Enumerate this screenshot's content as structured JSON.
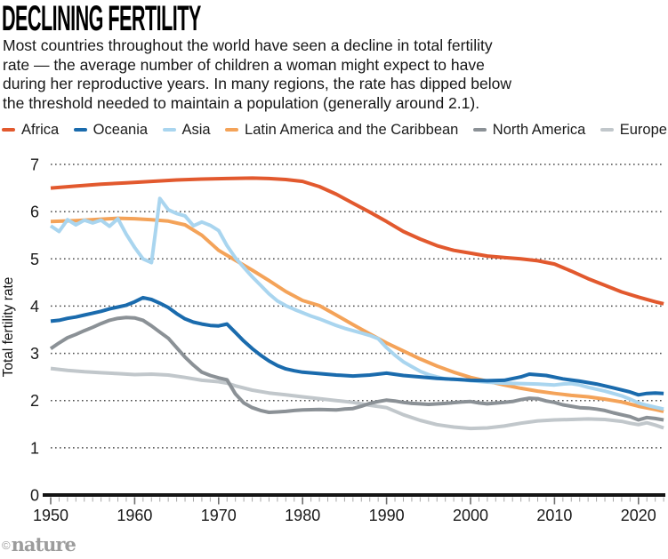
{
  "header": {
    "title": "DECLINING FERTILITY",
    "description_lines": [
      "Most countries throughout the world have seen a decline in total fertility",
      "rate — the average number of children a woman might expect to have",
      "during her reproductive years. In many regions, the rate has dipped below",
      "the threshold needed to maintain a population (generally around 2.1)."
    ]
  },
  "footer": {
    "credit_symbol": "©",
    "credit_name": "nature"
  },
  "chart_data": {
    "type": "line",
    "title": "DECLINING FERTILITY",
    "xlabel": "",
    "ylabel": "Total fertility rate",
    "xlim": [
      1950,
      2023
    ],
    "ylim": [
      0,
      7
    ],
    "x_ticks": [
      1950,
      1960,
      1970,
      1980,
      1990,
      2000,
      2010,
      2020
    ],
    "y_ticks": [
      0,
      1,
      2,
      3,
      4,
      5,
      6,
      7
    ],
    "grid": "horizontal dotted lines at y = 1..7",
    "legend_position": "top",
    "series": [
      {
        "name": "Africa",
        "color": "#e2592e",
        "points": [
          [
            1950,
            6.5
          ],
          [
            1953,
            6.54
          ],
          [
            1956,
            6.58
          ],
          [
            1959,
            6.61
          ],
          [
            1962,
            6.64
          ],
          [
            1965,
            6.67
          ],
          [
            1968,
            6.69
          ],
          [
            1971,
            6.7
          ],
          [
            1974,
            6.71
          ],
          [
            1976,
            6.7
          ],
          [
            1978,
            6.68
          ],
          [
            1980,
            6.64
          ],
          [
            1982,
            6.53
          ],
          [
            1984,
            6.37
          ],
          [
            1986,
            6.18
          ],
          [
            1988,
            5.99
          ],
          [
            1990,
            5.79
          ],
          [
            1992,
            5.58
          ],
          [
            1994,
            5.42
          ],
          [
            1996,
            5.28
          ],
          [
            1998,
            5.18
          ],
          [
            2000,
            5.12
          ],
          [
            2002,
            5.06
          ],
          [
            2004,
            5.03
          ],
          [
            2006,
            5.0
          ],
          [
            2008,
            4.96
          ],
          [
            2010,
            4.89
          ],
          [
            2012,
            4.74
          ],
          [
            2014,
            4.58
          ],
          [
            2016,
            4.44
          ],
          [
            2018,
            4.3
          ],
          [
            2020,
            4.19
          ],
          [
            2022,
            4.09
          ],
          [
            2023,
            4.05
          ]
        ]
      },
      {
        "name": "Oceania",
        "color": "#1a6bad",
        "points": [
          [
            1950,
            3.68
          ],
          [
            1951,
            3.7
          ],
          [
            1952,
            3.74
          ],
          [
            1953,
            3.77
          ],
          [
            1954,
            3.81
          ],
          [
            1955,
            3.85
          ],
          [
            1956,
            3.89
          ],
          [
            1957,
            3.94
          ],
          [
            1958,
            3.98
          ],
          [
            1959,
            4.02
          ],
          [
            1960,
            4.09
          ],
          [
            1961,
            4.18
          ],
          [
            1962,
            4.14
          ],
          [
            1963,
            4.06
          ],
          [
            1964,
            3.97
          ],
          [
            1965,
            3.84
          ],
          [
            1966,
            3.73
          ],
          [
            1967,
            3.66
          ],
          [
            1968,
            3.62
          ],
          [
            1969,
            3.59
          ],
          [
            1970,
            3.58
          ],
          [
            1971,
            3.62
          ],
          [
            1972,
            3.44
          ],
          [
            1973,
            3.26
          ],
          [
            1974,
            3.1
          ],
          [
            1975,
            2.96
          ],
          [
            1976,
            2.84
          ],
          [
            1977,
            2.74
          ],
          [
            1978,
            2.67
          ],
          [
            1979,
            2.63
          ],
          [
            1980,
            2.6
          ],
          [
            1982,
            2.57
          ],
          [
            1984,
            2.54
          ],
          [
            1986,
            2.52
          ],
          [
            1988,
            2.54
          ],
          [
            1990,
            2.58
          ],
          [
            1992,
            2.53
          ],
          [
            1994,
            2.5
          ],
          [
            1996,
            2.47
          ],
          [
            1998,
            2.45
          ],
          [
            2000,
            2.43
          ],
          [
            2002,
            2.42
          ],
          [
            2004,
            2.43
          ],
          [
            2006,
            2.5
          ],
          [
            2007,
            2.56
          ],
          [
            2009,
            2.53
          ],
          [
            2011,
            2.46
          ],
          [
            2013,
            2.41
          ],
          [
            2015,
            2.35
          ],
          [
            2017,
            2.27
          ],
          [
            2019,
            2.18
          ],
          [
            2020,
            2.12
          ],
          [
            2021,
            2.15
          ],
          [
            2022,
            2.16
          ],
          [
            2023,
            2.15
          ]
        ]
      },
      {
        "name": "Asia",
        "color": "#a9d5ef",
        "points": [
          [
            1950,
            5.7
          ],
          [
            1951,
            5.58
          ],
          [
            1952,
            5.83
          ],
          [
            1953,
            5.72
          ],
          [
            1954,
            5.82
          ],
          [
            1955,
            5.76
          ],
          [
            1956,
            5.82
          ],
          [
            1957,
            5.69
          ],
          [
            1958,
            5.85
          ],
          [
            1959,
            5.52
          ],
          [
            1960,
            5.24
          ],
          [
            1961,
            5.0
          ],
          [
            1962,
            4.92
          ],
          [
            1963,
            6.28
          ],
          [
            1964,
            6.04
          ],
          [
            1965,
            5.96
          ],
          [
            1966,
            5.91
          ],
          [
            1967,
            5.7
          ],
          [
            1968,
            5.78
          ],
          [
            1969,
            5.71
          ],
          [
            1970,
            5.6
          ],
          [
            1971,
            5.28
          ],
          [
            1972,
            5.02
          ],
          [
            1973,
            4.82
          ],
          [
            1974,
            4.62
          ],
          [
            1975,
            4.44
          ],
          [
            1976,
            4.26
          ],
          [
            1977,
            4.11
          ],
          [
            1978,
            4.01
          ],
          [
            1979,
            3.93
          ],
          [
            1980,
            3.86
          ],
          [
            1981,
            3.79
          ],
          [
            1982,
            3.73
          ],
          [
            1983,
            3.66
          ],
          [
            1984,
            3.59
          ],
          [
            1985,
            3.53
          ],
          [
            1986,
            3.48
          ],
          [
            1987,
            3.43
          ],
          [
            1988,
            3.38
          ],
          [
            1989,
            3.31
          ],
          [
            1990,
            3.12
          ],
          [
            1991,
            2.96
          ],
          [
            1992,
            2.82
          ],
          [
            1993,
            2.72
          ],
          [
            1994,
            2.62
          ],
          [
            1995,
            2.55
          ],
          [
            1996,
            2.5
          ],
          [
            1997,
            2.46
          ],
          [
            1998,
            2.45
          ],
          [
            1999,
            2.44
          ],
          [
            2000,
            2.42
          ],
          [
            2002,
            2.39
          ],
          [
            2004,
            2.37
          ],
          [
            2006,
            2.36
          ],
          [
            2008,
            2.35
          ],
          [
            2010,
            2.33
          ],
          [
            2011,
            2.35
          ],
          [
            2012,
            2.36
          ],
          [
            2013,
            2.33
          ],
          [
            2014,
            2.28
          ],
          [
            2016,
            2.2
          ],
          [
            2018,
            2.1
          ],
          [
            2019,
            2.03
          ],
          [
            2020,
            1.95
          ],
          [
            2021,
            1.9
          ],
          [
            2022,
            1.86
          ],
          [
            2023,
            1.82
          ]
        ]
      },
      {
        "name": "Latin America and the Caribbean",
        "color": "#f4a359",
        "points": [
          [
            1950,
            5.79
          ],
          [
            1953,
            5.81
          ],
          [
            1956,
            5.84
          ],
          [
            1958,
            5.86
          ],
          [
            1960,
            5.85
          ],
          [
            1962,
            5.83
          ],
          [
            1964,
            5.8
          ],
          [
            1966,
            5.72
          ],
          [
            1968,
            5.5
          ],
          [
            1970,
            5.18
          ],
          [
            1972,
            4.97
          ],
          [
            1974,
            4.76
          ],
          [
            1976,
            4.54
          ],
          [
            1978,
            4.31
          ],
          [
            1980,
            4.12
          ],
          [
            1982,
            4.01
          ],
          [
            1984,
            3.81
          ],
          [
            1986,
            3.61
          ],
          [
            1988,
            3.41
          ],
          [
            1990,
            3.22
          ],
          [
            1992,
            3.05
          ],
          [
            1994,
            2.88
          ],
          [
            1996,
            2.73
          ],
          [
            1998,
            2.6
          ],
          [
            2000,
            2.49
          ],
          [
            2002,
            2.41
          ],
          [
            2004,
            2.33
          ],
          [
            2006,
            2.26
          ],
          [
            2008,
            2.2
          ],
          [
            2010,
            2.15
          ],
          [
            2012,
            2.11
          ],
          [
            2014,
            2.08
          ],
          [
            2016,
            2.03
          ],
          [
            2018,
            1.97
          ],
          [
            2020,
            1.88
          ],
          [
            2022,
            1.81
          ],
          [
            2023,
            1.77
          ]
        ]
      },
      {
        "name": "North America",
        "color": "#8b9196",
        "points": [
          [
            1950,
            3.1
          ],
          [
            1951,
            3.22
          ],
          [
            1952,
            3.33
          ],
          [
            1953,
            3.4
          ],
          [
            1954,
            3.48
          ],
          [
            1955,
            3.55
          ],
          [
            1956,
            3.63
          ],
          [
            1957,
            3.7
          ],
          [
            1958,
            3.74
          ],
          [
            1959,
            3.76
          ],
          [
            1960,
            3.75
          ],
          [
            1961,
            3.7
          ],
          [
            1962,
            3.58
          ],
          [
            1963,
            3.45
          ],
          [
            1964,
            3.32
          ],
          [
            1965,
            3.12
          ],
          [
            1966,
            2.92
          ],
          [
            1967,
            2.75
          ],
          [
            1968,
            2.6
          ],
          [
            1969,
            2.53
          ],
          [
            1970,
            2.48
          ],
          [
            1971,
            2.44
          ],
          [
            1972,
            2.14
          ],
          [
            1973,
            1.95
          ],
          [
            1974,
            1.85
          ],
          [
            1975,
            1.79
          ],
          [
            1976,
            1.75
          ],
          [
            1977,
            1.76
          ],
          [
            1978,
            1.77
          ],
          [
            1979,
            1.79
          ],
          [
            1980,
            1.8
          ],
          [
            1982,
            1.81
          ],
          [
            1984,
            1.8
          ],
          [
            1985,
            1.82
          ],
          [
            1986,
            1.83
          ],
          [
            1987,
            1.88
          ],
          [
            1988,
            1.94
          ],
          [
            1989,
            1.98
          ],
          [
            1990,
            2.01
          ],
          [
            1991,
            1.99
          ],
          [
            1992,
            1.96
          ],
          [
            1993,
            1.94
          ],
          [
            1994,
            1.93
          ],
          [
            1995,
            1.92
          ],
          [
            1997,
            1.94
          ],
          [
            1999,
            1.97
          ],
          [
            2000,
            1.98
          ],
          [
            2001,
            1.95
          ],
          [
            2002,
            1.93
          ],
          [
            2004,
            1.96
          ],
          [
            2005,
            1.98
          ],
          [
            2006,
            2.02
          ],
          [
            2007,
            2.05
          ],
          [
            2008,
            2.04
          ],
          [
            2009,
            1.99
          ],
          [
            2010,
            1.96
          ],
          [
            2011,
            1.91
          ],
          [
            2012,
            1.88
          ],
          [
            2013,
            1.85
          ],
          [
            2014,
            1.84
          ],
          [
            2015,
            1.82
          ],
          [
            2016,
            1.79
          ],
          [
            2017,
            1.74
          ],
          [
            2018,
            1.7
          ],
          [
            2019,
            1.66
          ],
          [
            2020,
            1.59
          ],
          [
            2021,
            1.64
          ],
          [
            2022,
            1.62
          ],
          [
            2023,
            1.59
          ]
        ]
      },
      {
        "name": "Europe",
        "color": "#c1c7cb",
        "points": [
          [
            1950,
            2.68
          ],
          [
            1952,
            2.64
          ],
          [
            1954,
            2.61
          ],
          [
            1956,
            2.59
          ],
          [
            1958,
            2.57
          ],
          [
            1960,
            2.55
          ],
          [
            1962,
            2.56
          ],
          [
            1964,
            2.54
          ],
          [
            1966,
            2.49
          ],
          [
            1968,
            2.43
          ],
          [
            1970,
            2.4
          ],
          [
            1971,
            2.37
          ],
          [
            1972,
            2.31
          ],
          [
            1974,
            2.22
          ],
          [
            1976,
            2.16
          ],
          [
            1978,
            2.12
          ],
          [
            1980,
            2.08
          ],
          [
            1982,
            2.04
          ],
          [
            1984,
            2.0
          ],
          [
            1986,
            1.96
          ],
          [
            1988,
            1.9
          ],
          [
            1990,
            1.85
          ],
          [
            1992,
            1.7
          ],
          [
            1994,
            1.58
          ],
          [
            1996,
            1.49
          ],
          [
            1998,
            1.44
          ],
          [
            2000,
            1.41
          ],
          [
            2002,
            1.42
          ],
          [
            2004,
            1.46
          ],
          [
            2006,
            1.52
          ],
          [
            2008,
            1.57
          ],
          [
            2010,
            1.59
          ],
          [
            2012,
            1.6
          ],
          [
            2014,
            1.61
          ],
          [
            2016,
            1.6
          ],
          [
            2018,
            1.56
          ],
          [
            2019,
            1.52
          ],
          [
            2020,
            1.49
          ],
          [
            2021,
            1.53
          ],
          [
            2022,
            1.48
          ],
          [
            2023,
            1.42
          ]
        ]
      }
    ]
  }
}
